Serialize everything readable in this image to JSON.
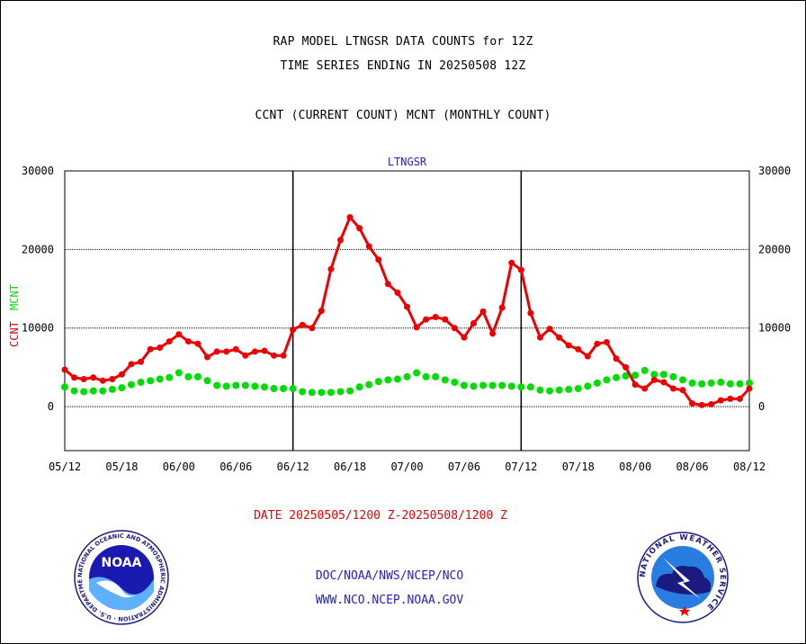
{
  "titles": {
    "line1": "RAP MODEL LTNGSR DATA COUNTS for 12Z",
    "line2": "TIME SERIES ENDING IN 20250508 12Z",
    "line3": "CCNT (CURRENT COUNT) MCNT (MONTHLY COUNT)"
  },
  "date_range": "DATE 20250505/1200 Z-20250508/1200 Z",
  "footer": {
    "line1": "DOC/NOAA/NWS/NCEP/NCO",
    "line2": "WWW.NCO.NCEP.NOAA.GOV"
  },
  "logos": {
    "noaa_text": "NOAA",
    "noaa_ring": "NATIONAL OCEANIC AND ATMOSPHERIC ADMINISTRATION · U.S. DEPARTMENT OF COMMERCE ·",
    "nws_ring": "NATIONAL WEATHER SERVICE"
  },
  "colors": {
    "ccnt": "#ee0000",
    "mcnt": "#00dd00",
    "label_blue": "#2222cc"
  },
  "chart_data": {
    "type": "line",
    "title": "LTNGSR",
    "ylabel_left": [
      "CCNT",
      "MCNT"
    ],
    "ylim": [
      -5600,
      30000
    ],
    "yticks": [
      0,
      10000,
      20000,
      30000
    ],
    "ytick_labels": [
      "0",
      "10000",
      "20000",
      "30000"
    ],
    "xlim": [
      0,
      72
    ],
    "xticks": [
      0,
      6,
      12,
      18,
      24,
      30,
      36,
      42,
      48,
      54,
      60,
      66,
      72
    ],
    "xtick_labels": [
      "05/12",
      "05/18",
      "06/00",
      "06/06",
      "06/12",
      "06/18",
      "07/00",
      "07/06",
      "07/12",
      "07/18",
      "08/00",
      "08/06",
      "08/12"
    ],
    "day_dividers": [
      24,
      48
    ],
    "grid": "horizontal dotted at 10000 and 20000",
    "x": [
      0,
      1,
      2,
      3,
      4,
      5,
      6,
      7,
      8,
      9,
      10,
      11,
      12,
      13,
      14,
      15,
      16,
      17,
      18,
      19,
      20,
      21,
      22,
      23,
      24,
      25,
      26,
      27,
      28,
      29,
      30,
      31,
      32,
      33,
      34,
      35,
      36,
      37,
      38,
      39,
      40,
      41,
      42,
      43,
      44,
      45,
      46,
      47,
      48,
      49,
      50,
      51,
      52,
      53,
      54,
      55,
      56,
      57,
      58,
      59,
      60,
      61,
      62,
      63,
      64,
      65,
      66,
      67,
      68,
      69,
      70,
      71,
      72
    ],
    "series": [
      {
        "name": "CCNT",
        "values": [
          4700,
          3700,
          3500,
          3700,
          3300,
          3500,
          4100,
          5400,
          5700,
          7300,
          7500,
          8300,
          9200,
          8300,
          8000,
          6300,
          7000,
          7000,
          7300,
          6500,
          7000,
          7100,
          6500,
          6500,
          9800,
          10400,
          10000,
          12200,
          17500,
          21200,
          24100,
          22700,
          20400,
          18700,
          15600,
          14500,
          12700,
          10100,
          11100,
          11400,
          11100,
          10000,
          8800,
          10600,
          12100,
          9300,
          12600,
          18300,
          17400,
          11900,
          8800,
          9900,
          8800,
          7800,
          7300,
          6400,
          8000,
          8200,
          6100,
          5000,
          2800,
          2300,
          3400,
          3100,
          2300,
          2100,
          400,
          200,
          300,
          800,
          1000,
          1000,
          2300
        ]
      },
      {
        "name": "MCNT",
        "values": [
          2500,
          2000,
          1900,
          2000,
          2000,
          2200,
          2400,
          2800,
          3100,
          3300,
          3500,
          3700,
          4300,
          3800,
          3800,
          3300,
          2700,
          2600,
          2700,
          2700,
          2600,
          2500,
          2300,
          2300,
          2300,
          1900,
          1800,
          1800,
          1800,
          1900,
          2000,
          2500,
          2800,
          3200,
          3400,
          3500,
          3800,
          4300,
          3800,
          3800,
          3400,
          3100,
          2700,
          2600,
          2700,
          2700,
          2700,
          2600,
          2500,
          2500,
          2100,
          2000,
          2100,
          2200,
          2300,
          2600,
          3000,
          3400,
          3700,
          3900,
          4000,
          4600,
          4100,
          4100,
          3800,
          3400,
          3000,
          2900,
          3000,
          3100,
          2900,
          2900,
          3000
        ]
      }
    ]
  }
}
